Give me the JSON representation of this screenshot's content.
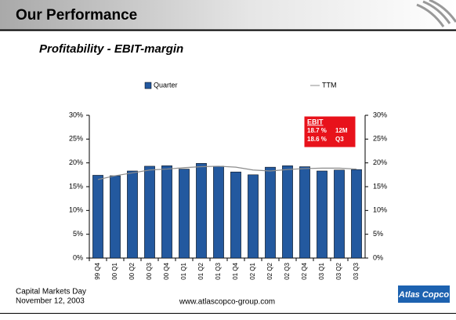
{
  "header": {
    "title": "Our Performance"
  },
  "subtitle": "Profitability - EBIT-margin",
  "chart_data": {
    "type": "bar-line",
    "categories": [
      "99 Q4",
      "00 Q1",
      "00 Q2",
      "00 Q3",
      "00 Q4",
      "01 Q1",
      "01 Q2",
      "01 Q3",
      "01 Q4",
      "02 Q1",
      "02 Q2",
      "02 Q3",
      "02 Q4",
      "03 Q1",
      "03 Q2",
      "03 Q3"
    ],
    "series": [
      {
        "name": "Quarter",
        "type": "bar",
        "color": "#23599f",
        "values": [
          17.4,
          17.3,
          18.3,
          19.3,
          19.4,
          18.7,
          19.9,
          19.3,
          18.1,
          17.5,
          19.1,
          19.4,
          19.2,
          18.3,
          18.5,
          18.6
        ]
      },
      {
        "name": "TTM",
        "type": "line",
        "color": "#8c8c8c",
        "axis": "y2",
        "values": [
          16.5,
          17.3,
          17.9,
          18.5,
          18.7,
          19.0,
          19.2,
          19.3,
          19.1,
          18.5,
          18.3,
          18.6,
          18.8,
          18.9,
          18.9,
          18.7
        ]
      }
    ],
    "ylim": [
      0,
      30
    ],
    "yticks": [
      {
        "value": 0,
        "label": "0%"
      },
      {
        "value": 5,
        "label": "5%"
      },
      {
        "value": 10,
        "label": "10%"
      },
      {
        "value": 15,
        "label": "15%"
      },
      {
        "value": 20,
        "label": "20%"
      },
      {
        "value": 25,
        "label": "25%"
      },
      {
        "value": 30,
        "label": "30%"
      }
    ],
    "y2lim": [
      0,
      30
    ],
    "y2ticks": [
      {
        "value": 0,
        "label": "0%"
      },
      {
        "value": 5,
        "label": "5%"
      },
      {
        "value": 10,
        "label": "10%"
      },
      {
        "value": 15,
        "label": "15%"
      },
      {
        "value": 20,
        "label": "20%"
      },
      {
        "value": 25,
        "label": "25%"
      },
      {
        "value": 30,
        "label": "30%"
      }
    ],
    "annotation": {
      "title": "EBIT",
      "rows": [
        [
          "18.7 %",
          "12M"
        ],
        [
          "18.6 %",
          "Q3"
        ]
      ]
    }
  },
  "footer": {
    "event": "Capital Markets Day",
    "date": "November 12, 2003",
    "url": "www.atlascopco-group.com",
    "logo": "Atlas Copco"
  }
}
